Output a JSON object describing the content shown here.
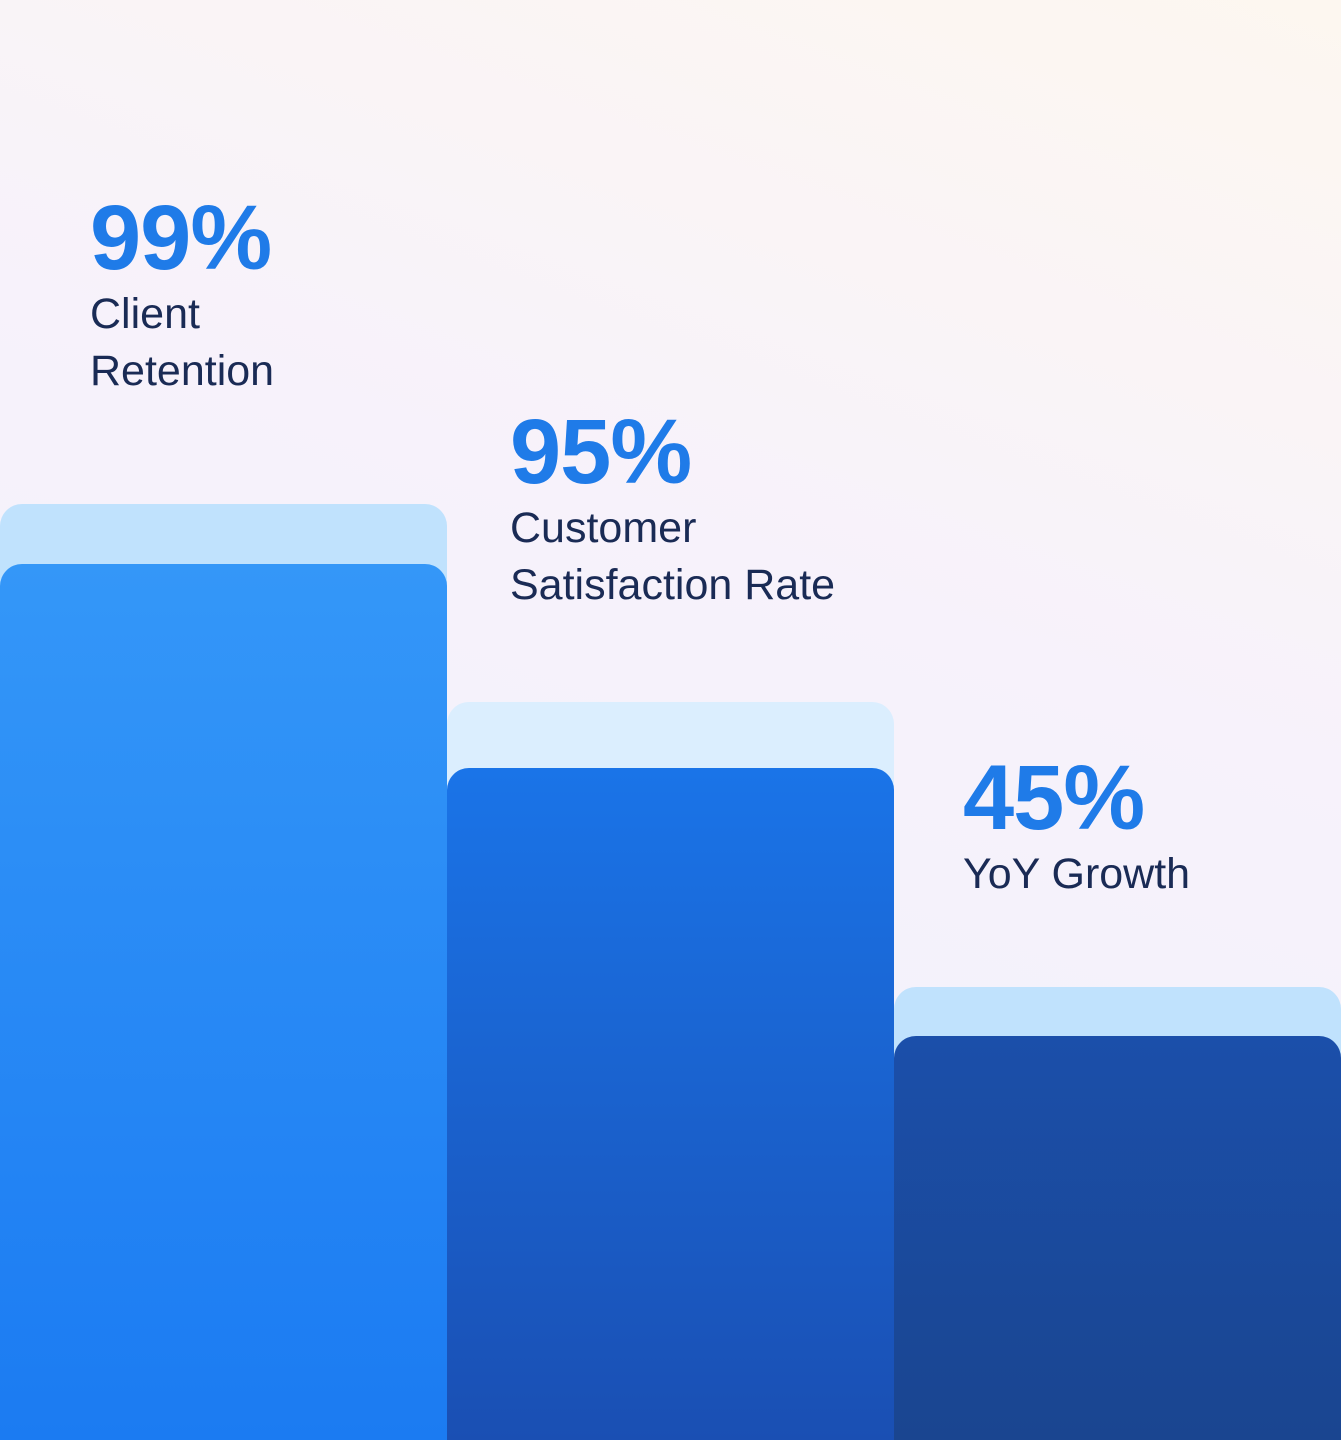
{
  "stats": [
    {
      "value": "99%",
      "label": "Client Retention"
    },
    {
      "value": "95%",
      "label": "Customer Satisfaction Rate"
    },
    {
      "value": "45%",
      "label": "YoY Growth"
    }
  ]
}
